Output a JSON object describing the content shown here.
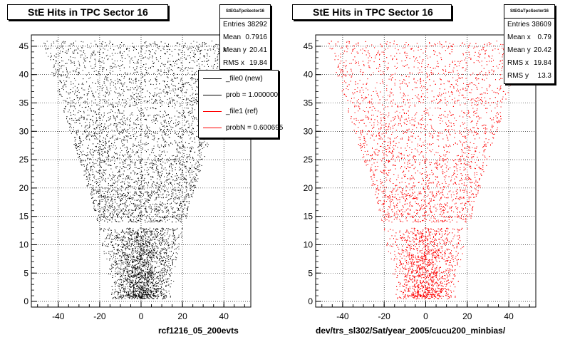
{
  "chart_data": [
    {
      "type": "scatter",
      "title": "StE Hits in TPC Sector 16",
      "xlabel": "rcf1216_05_200evts",
      "ylabel": "",
      "xlim": [
        -53,
        53
      ],
      "ylim": [
        -1,
        47
      ],
      "xticks": [
        -40,
        -20,
        0,
        20,
        40
      ],
      "yticks": [
        0,
        5,
        10,
        15,
        20,
        25,
        30,
        35,
        40,
        45
      ],
      "xtick_labels": [
        "-40",
        "-20",
        "0",
        "20",
        "40"
      ],
      "ytick_labels": [
        "0",
        "5",
        "10",
        "15",
        "20",
        "25",
        "30",
        "35",
        "40",
        "45"
      ],
      "grid": true,
      "marker_color": "#000000",
      "stats": {
        "name": "StEGaTpcSector16",
        "rows": [
          {
            "label": "Entries",
            "value": "38292"
          },
          {
            "label": "Mean x",
            "value": "0.7916"
          },
          {
            "label": "Mean y",
            "value": "20.41"
          },
          {
            "label": "RMS x",
            "value": "19.84"
          }
        ]
      },
      "legend": {
        "position": "top-right",
        "entries": [
          {
            "label": "_file0 (new)",
            "color": "#000000"
          },
          {
            "label": "prob = 1.000000",
            "color": "#000000"
          },
          {
            "label": "_file1 (ref)",
            "color": "#ff0000"
          },
          {
            "label": "probN = 0.600695",
            "color": "#ff0000"
          }
        ]
      }
    },
    {
      "type": "scatter",
      "title": "StE Hits in TPC Sector 16",
      "xlabel": "dev/trs_sl302/Sat/year_2005/cucu200_minbias/",
      "ylabel": "",
      "xlim": [
        -53,
        53
      ],
      "ylim": [
        -1,
        47
      ],
      "xticks": [
        -40,
        -20,
        0,
        20,
        40
      ],
      "yticks": [
        0,
        5,
        10,
        15,
        20,
        25,
        30,
        35,
        40,
        45
      ],
      "xtick_labels": [
        "-40",
        "-20",
        "0",
        "20",
        "40"
      ],
      "ytick_labels": [
        "0",
        "5",
        "10",
        "15",
        "20",
        "25",
        "30",
        "35",
        "40",
        "45"
      ],
      "grid": true,
      "marker_color": "#ff0000",
      "stats": {
        "name": "StEGaTpcSector16",
        "rows": [
          {
            "label": "Entries",
            "value": "38609"
          },
          {
            "label": "Mean x",
            "value": "0.79"
          },
          {
            "label": "Mean y",
            "value": "20.42"
          },
          {
            "label": "RMS x",
            "value": "19.84"
          },
          {
            "label": "RMS y",
            "value": "13.3"
          }
        ]
      }
    }
  ]
}
